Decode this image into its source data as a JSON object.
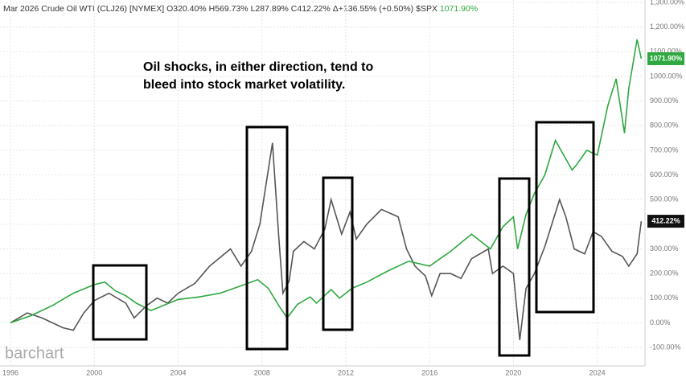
{
  "header": {
    "symbol": "Mar 2026 Crude Oil WTI (CLJ26) [NYMEX]",
    "stats": [
      "O320.40%",
      "H569.73%",
      "L287.89%",
      "C412.22%",
      "Δ+136.55% (+0.50%)"
    ],
    "compare_symbol": "$SPX",
    "compare_value": "1071.90%"
  },
  "watermark": "barchart",
  "chart_data": {
    "type": "line",
    "annotation": [
      "Oil shocks, in either direction, tend to",
      "bleed into stock market volatility."
    ],
    "xlim": [
      1995.5,
      2026.2
    ],
    "xticks": [
      1996,
      2000,
      2004,
      2008,
      2012,
      2016,
      2020,
      2024
    ],
    "ylim": [
      -175,
      1310
    ],
    "yticks": [
      {
        "value": -100,
        "label": "-100.00%"
      },
      {
        "value": 0,
        "label": "0.00%"
      },
      {
        "value": 100,
        "label": "100.00%"
      },
      {
        "value": 200,
        "label": "200.00%"
      },
      {
        "value": 300,
        "label": "300.00%"
      },
      {
        "value": 400,
        "label": "400.00%"
      },
      {
        "value": 500,
        "label": "500.00%"
      },
      {
        "value": 600,
        "label": "600.00%"
      },
      {
        "value": 700,
        "label": "700.00%"
      },
      {
        "value": 800,
        "label": "800.00%"
      },
      {
        "value": 900,
        "label": "900.00%"
      },
      {
        "value": 1000,
        "label": "1000.00%"
      },
      {
        "value": 1100,
        "label": "1100.00%"
      },
      {
        "value": 1200,
        "label": "1,200.00%"
      },
      {
        "value": 1300,
        "label": "1,300.00%"
      }
    ],
    "grid": true,
    "series": [
      {
        "color": "#555555",
        "x": [
          1996,
          1996.8,
          1997.5,
          1998.5,
          1999,
          1999.5,
          2000,
          2000.7,
          2001.5,
          2001.9,
          2002.5,
          2003,
          2003.5,
          2004,
          2004.8,
          2005.5,
          2006.5,
          2007,
          2007.5,
          2007.9,
          2008.5,
          2008.8,
          2009,
          2009.3,
          2009.5,
          2010,
          2010.5,
          2011,
          2011.3,
          2011.8,
          2012.2,
          2012.5,
          2013,
          2013.7,
          2014.5,
          2014.9,
          2015.3,
          2015.8,
          2016.1,
          2016.5,
          2017,
          2017.5,
          2018,
          2018.8,
          2019,
          2019.5,
          2020,
          2020.3,
          2020.6,
          2021,
          2021.5,
          2022.2,
          2022.5,
          2022.9,
          2023.4,
          2023.8,
          2024.2,
          2024.7,
          2025.2,
          2025.5,
          2025.9,
          2026.1
        ],
        "values": [
          0,
          40,
          20,
          -20,
          -30,
          40,
          90,
          120,
          80,
          20,
          70,
          100,
          80,
          120,
          160,
          230,
          300,
          230,
          290,
          400,
          730,
          350,
          120,
          170,
          290,
          330,
          300,
          380,
          500,
          360,
          450,
          340,
          400,
          460,
          430,
          300,
          230,
          190,
          110,
          200,
          200,
          180,
          260,
          300,
          200,
          230,
          200,
          -70,
          140,
          200,
          310,
          500,
          430,
          300,
          280,
          370,
          350,
          290,
          270,
          230,
          280,
          412
        ],
        "price_label": {
          "value": 412.22,
          "label": "412.22%"
        }
      },
      {
        "color": "#2ea83f",
        "x": [
          1996,
          1997,
          1998,
          1999,
          2000,
          2000.5,
          2001,
          2001.5,
          2002,
          2002.7,
          2003,
          2004,
          2005,
          2006,
          2007,
          2007.8,
          2008.3,
          2008.8,
          2009.2,
          2009.7,
          2010.3,
          2010.6,
          2011.3,
          2011.7,
          2012.3,
          2013,
          2014,
          2015,
          2016,
          2016.5,
          2017,
          2018,
          2018.9,
          2019.5,
          2020,
          2020.2,
          2020.6,
          2021,
          2021.5,
          2022,
          2022.8,
          2023,
          2023.5,
          2024,
          2024.5,
          2024.9,
          2025.3,
          2025.5,
          2025.9,
          2026.1
        ],
        "values": [
          0,
          30,
          70,
          120,
          155,
          165,
          130,
          110,
          80,
          50,
          60,
          95,
          105,
          120,
          150,
          175,
          140,
          70,
          20,
          75,
          105,
          80,
          135,
          100,
          140,
          165,
          210,
          250,
          230,
          260,
          290,
          360,
          300,
          390,
          430,
          300,
          440,
          525,
          600,
          740,
          620,
          640,
          700,
          680,
          880,
          990,
          770,
          950,
          1150,
          1072
        ],
        "price_label": {
          "value": 1071.9,
          "label": "1071.90%"
        }
      }
    ]
  }
}
